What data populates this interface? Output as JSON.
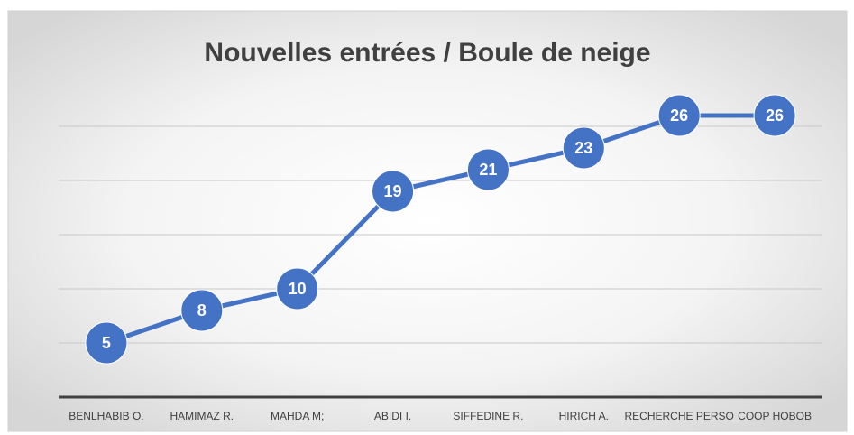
{
  "chart_data": {
    "type": "line",
    "title": "Nouvelles entrées / Boule de neige",
    "categories": [
      "BENLHABIB O.",
      "HAMIMAZ R.",
      "MAHDA M;",
      "ABIDI I.",
      "SIFFEDINE R.",
      "HIRICH A.",
      "RECHERCHE PERSO",
      "COOP HOBOB"
    ],
    "series": [
      {
        "name": "Nouvelles entrées",
        "color": "#4472c4",
        "values": [
          5,
          8,
          10,
          19,
          21,
          23,
          26,
          26
        ]
      }
    ],
    "ylim": [
      0,
      30
    ],
    "yticks": [
      0,
      5,
      10,
      15,
      20,
      25
    ],
    "grid": true
  }
}
